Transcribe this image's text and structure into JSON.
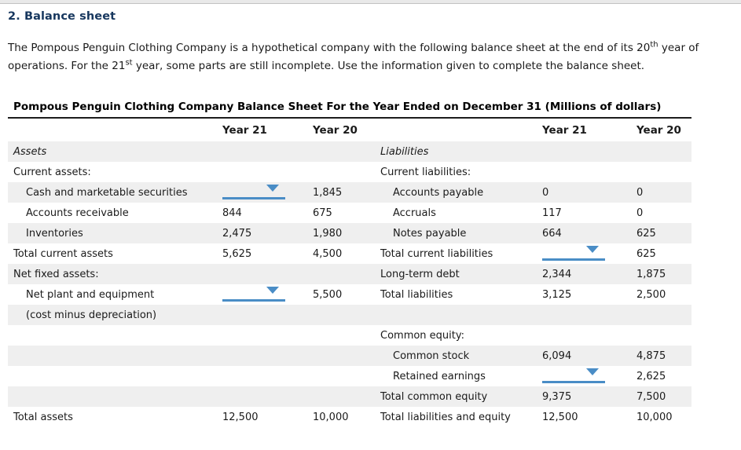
{
  "page": {
    "heading": "2. Balance sheet",
    "intro": {
      "part1": "The Pompous Penguin Clothing Company is a hypothetical company with the following balance sheet at the end of its 20",
      "sup1": "th",
      "part2": " year of operations. For the 21",
      "sup2": "st",
      "part3": " year, some parts are still incomplete. Use the information given to complete the balance sheet."
    }
  },
  "colors": {
    "heading_navy": "#17375e",
    "dropdown_blue": "#4a8dc6",
    "row_stripe": "#efefef"
  },
  "table": {
    "title": "Pompous Penguin Clothing Company Balance Sheet For the Year Ended on December 31 (Millions of dollars)",
    "headers": {
      "year21": "Year 21",
      "year20": "Year 20"
    },
    "rows": [
      {
        "left": {
          "label": "Assets"
        },
        "right": {
          "label": "Liabilities"
        }
      },
      {
        "left": {
          "label": "Current assets:"
        },
        "right": {
          "label": "Current liabilities:"
        }
      },
      {
        "left": {
          "label": "Cash and marketable securities",
          "y21_dropdown": true,
          "y20": "1,845"
        },
        "right": {
          "label": "Accounts payable",
          "y21": "0",
          "y20": "0"
        }
      },
      {
        "left": {
          "label": "Accounts receivable",
          "y21": "844",
          "y20": "675"
        },
        "right": {
          "label": "Accruals",
          "y21": "117",
          "y20": "0"
        }
      },
      {
        "left": {
          "label": "Inventories",
          "y21": "2,475",
          "y20": "1,980"
        },
        "right": {
          "label": "Notes payable",
          "y21": "664",
          "y20": "625"
        }
      },
      {
        "left": {
          "label": "Total current assets",
          "y21": "5,625",
          "y20": "4,500"
        },
        "right": {
          "label": "Total current liabilities",
          "y21_dropdown": true,
          "y20": "625"
        }
      },
      {
        "left": {
          "label": "Net fixed assets:"
        },
        "right": {
          "label": "Long-term debt",
          "y21": "2,344",
          "y20": "1,875"
        }
      },
      {
        "left": {
          "label": "Net plant and equipment",
          "y21_dropdown": true,
          "y20": "5,500"
        },
        "right": {
          "label": "Total liabilities",
          "y21": "3,125",
          "y20": "2,500"
        }
      },
      {
        "left": {
          "label": "(cost minus depreciation)"
        },
        "right": {}
      },
      {
        "left": {},
        "right": {
          "label": "Common equity:"
        }
      },
      {
        "left": {},
        "right": {
          "label": "Common stock",
          "y21": "6,094",
          "y20": "4,875"
        }
      },
      {
        "left": {},
        "right": {
          "label": "Retained earnings",
          "y21_dropdown": true,
          "y20": "2,625"
        }
      },
      {
        "left": {},
        "right": {
          "label": "Total common equity",
          "y21": "9,375",
          "y20": "7,500"
        }
      },
      {
        "left": {
          "label": "Total assets",
          "y21": "12,500",
          "y20": "10,000"
        },
        "right": {
          "label": "Total liabilities and equity",
          "y21": "12,500",
          "y20": "10,000"
        }
      }
    ]
  }
}
